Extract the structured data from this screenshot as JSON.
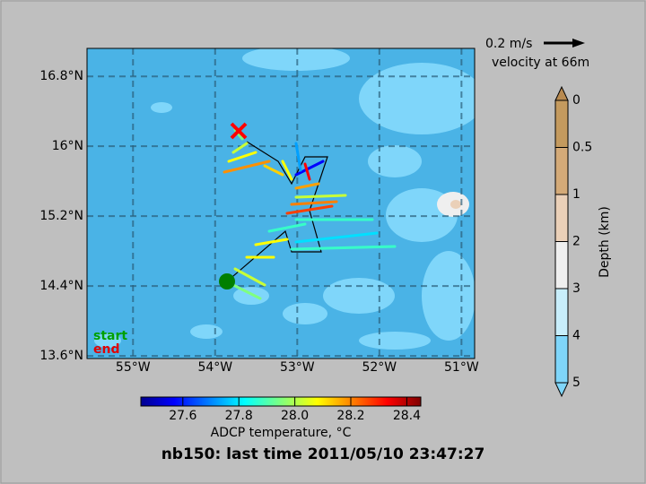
{
  "map": {
    "title": "nb150: last time 2011/05/10 23:47:27",
    "xlim": [
      -55.56,
      -50.84
    ],
    "ylim": [
      13.57,
      17.12
    ],
    "xticks": [
      {
        "value": -55,
        "label": "55°W"
      },
      {
        "value": -54,
        "label": "54°W"
      },
      {
        "value": -53,
        "label": "53°W"
      },
      {
        "value": -52,
        "label": "52°W"
      },
      {
        "value": -51,
        "label": "51°W"
      }
    ],
    "yticks": [
      {
        "value": 13.6,
        "label": "13.6°N"
      },
      {
        "value": 14.4,
        "label": "14.4°N"
      },
      {
        "value": 15.2,
        "label": "15.2°N"
      },
      {
        "value": 16,
        "label": "16°N"
      },
      {
        "value": 16.8,
        "label": "16.8°N"
      }
    ],
    "start_label": "start",
    "end_label": "end",
    "scale_label": "0.2 m/s",
    "scale_note": "velocity at 66m"
  },
  "temperature_colorbar": {
    "label": "ADCP temperature, °C",
    "lim": [
      27.45,
      28.45
    ],
    "ticks": [
      27.6,
      27.8,
      {
        "value": 28,
        "label": "28.0"
      },
      28.2,
      28.4
    ]
  },
  "depth_colorbar": {
    "label": "Depth (km)",
    "ticks": [
      0,
      0.5,
      1,
      2,
      3,
      4,
      5
    ]
  }
}
